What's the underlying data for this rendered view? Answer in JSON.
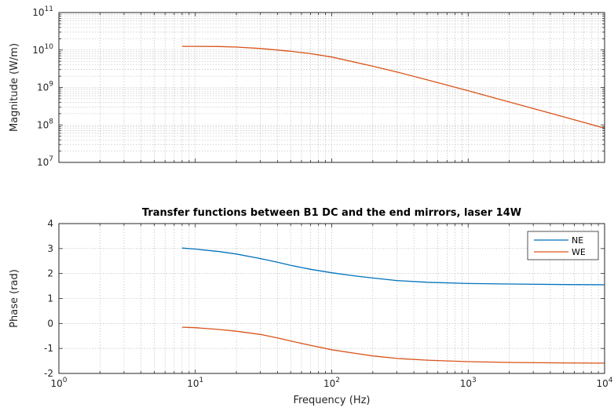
{
  "chart_data": [
    {
      "type": "line",
      "title": "",
      "xlabel": "",
      "ylabel": "Magnitude (W/m)",
      "xscale": "log",
      "yscale": "log",
      "xlim": [
        1,
        10000
      ],
      "ylim": [
        10000000,
        100000000000
      ],
      "grid": true,
      "xtick_labels": [
        "",
        "",
        "",
        "",
        ""
      ],
      "ytick_labels": [
        {
          "base": "10",
          "exp": "7"
        },
        {
          "base": "10",
          "exp": "8"
        },
        {
          "base": "10",
          "exp": "9"
        },
        {
          "base": "10",
          "exp": "10"
        },
        {
          "base": "10",
          "exp": "11"
        }
      ],
      "series": [
        {
          "color": "#D95319",
          "x": [
            8,
            10,
            15,
            20,
            30,
            50,
            70,
            100,
            200,
            300,
            500,
            1000,
            2000,
            5000,
            10000
          ],
          "values": [
            12500000000,
            12500000000,
            12400000000,
            12000000000,
            11000000000,
            9300000000,
            8000000000,
            6500000000,
            3700000000,
            2600000000,
            1600000000,
            820000000,
            410000000,
            165000000,
            82000000
          ]
        }
      ]
    },
    {
      "type": "line",
      "title": "Transfer functions between B1 DC and the end mirrors, laser 14W",
      "xlabel": "Frequency (Hz)",
      "ylabel": "Phase (rad)",
      "xscale": "log",
      "xlim": [
        1,
        10000
      ],
      "ylim": [
        -2,
        4
      ],
      "grid": true,
      "legend": "top-right",
      "xtick_labels": [
        {
          "base": "10",
          "exp": "0"
        },
        {
          "base": "10",
          "exp": "1"
        },
        {
          "base": "10",
          "exp": "2"
        },
        {
          "base": "10",
          "exp": "3"
        },
        {
          "base": "10",
          "exp": "4"
        }
      ],
      "ytick_labels": [
        "-2",
        "-1",
        "0",
        "1",
        "2",
        "3",
        "4"
      ],
      "series": [
        {
          "name": "NE",
          "color": "#0072BD",
          "x": [
            8,
            10,
            15,
            20,
            30,
            40,
            50,
            70,
            100,
            150,
            200,
            300,
            500,
            1000,
            2000,
            5000,
            10000
          ],
          "values": [
            3.02,
            2.98,
            2.88,
            2.78,
            2.6,
            2.45,
            2.33,
            2.17,
            2.03,
            1.9,
            1.82,
            1.72,
            1.65,
            1.6,
            1.58,
            1.56,
            1.55
          ]
        },
        {
          "name": "WE",
          "color": "#D95319",
          "x": [
            8,
            10,
            15,
            20,
            30,
            40,
            50,
            70,
            100,
            150,
            200,
            300,
            500,
            1000,
            2000,
            5000,
            10000
          ],
          "values": [
            -0.15,
            -0.17,
            -0.24,
            -0.31,
            -0.44,
            -0.58,
            -0.7,
            -0.88,
            -1.05,
            -1.2,
            -1.3,
            -1.4,
            -1.47,
            -1.53,
            -1.56,
            -1.58,
            -1.59
          ]
        }
      ]
    }
  ]
}
